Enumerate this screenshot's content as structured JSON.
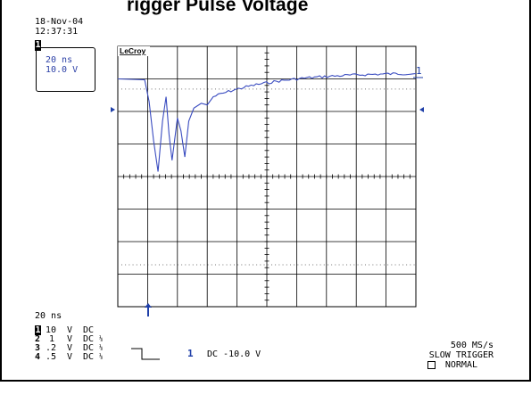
{
  "window": {
    "title_partial": "rigger Pulse Voltage",
    "date": "18-Nov-04",
    "time": "12:37:31"
  },
  "channel_box": {
    "channel": "1",
    "timebase": "20 ns",
    "volts_div": "10.0 V"
  },
  "display": {
    "brand": "LeCroy",
    "trace_marker": "1",
    "trigger_marker": "↑",
    "trace_color": "#3a4cc0"
  },
  "footer": {
    "timebase": "20 ns",
    "channels": [
      {
        "num": "1",
        "value": "10",
        "unit": "V",
        "coupling": "DC",
        "extra": ""
      },
      {
        "num": "2",
        "value": "1",
        "unit": "V",
        "coupling": "DC",
        "extra": "⅛"
      },
      {
        "num": "3",
        "value": ".2",
        "unit": "V",
        "coupling": "DC",
        "extra": "⅛"
      },
      {
        "num": "4",
        "value": ".5",
        "unit": "V",
        "coupling": "DC",
        "extra": "⅛"
      }
    ],
    "trigger_channel": "1",
    "trigger_info": "DC -10.0 V",
    "sample_rate": "500 MS/s",
    "trigger_mode": "SLOW TRIGGER",
    "acq_mode": "NORMAL"
  }
}
